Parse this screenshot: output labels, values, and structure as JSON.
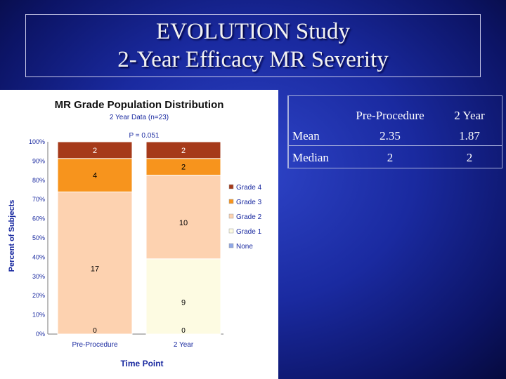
{
  "slide": {
    "title_line1": "EVOLUTION Study",
    "title_line2": "2-Year Efficacy MR Severity"
  },
  "table": {
    "headers": [
      "",
      "Pre-Procedure",
      "2 Year"
    ],
    "rows": [
      {
        "label": "Mean",
        "pre": "2.35",
        "two_year": "1.87"
      },
      {
        "label": "Median",
        "pre": "2",
        "two_year": "2"
      }
    ]
  },
  "chart_data": {
    "type": "bar",
    "stacked": true,
    "title": "MR Grade Population Distribution",
    "subtitle": "2 Year Data (n=23)",
    "annotation": "P = 0.051",
    "xlabel": "Time Point",
    "ylabel": "Percent of Subjects",
    "categories": [
      "Pre-Procedure",
      "2 Year"
    ],
    "ylim": [
      0,
      100
    ],
    "yticks": [
      "0%",
      "10%",
      "20%",
      "30%",
      "40%",
      "50%",
      "60%",
      "70%",
      "80%",
      "90%",
      "100%"
    ],
    "legend_position": "right",
    "series": [
      {
        "name": "None",
        "counts": [
          0,
          0
        ],
        "color": "#8fa8e8"
      },
      {
        "name": "Grade 1",
        "counts": [
          0,
          9
        ],
        "color": "#fdfbe2"
      },
      {
        "name": "Grade 2",
        "counts": [
          17,
          10
        ],
        "color": "#fdd2b0"
      },
      {
        "name": "Grade 3",
        "counts": [
          4,
          2
        ],
        "color": "#f7941d"
      },
      {
        "name": "Grade 4",
        "counts": [
          2,
          2
        ],
        "color": "#a63a1a"
      }
    ],
    "zero_labels": [
      "0",
      "0"
    ],
    "total": 23
  }
}
